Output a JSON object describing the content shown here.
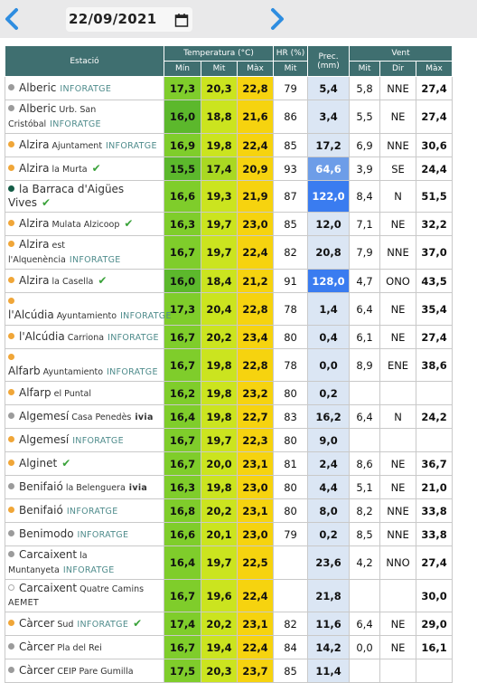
{
  "header": {
    "date": "22/09/2021"
  },
  "table": {
    "columns": {
      "station": "Estació",
      "temp": "Temperatura (°C)",
      "temp_min": "Mín",
      "temp_mit": "Mit",
      "temp_max": "Màx",
      "hr": "HR (%)",
      "hr_mit": "Mit",
      "prec": "Prec. (mm)",
      "wind": "Vent",
      "wind_mit": "Mit",
      "wind_dir": "Dir",
      "wind_max": "Màx"
    },
    "rows": [
      {
        "name": "Alberic",
        "place": null,
        "source": "INFORATGE",
        "dot": "gray",
        "check": false,
        "min": "17,3",
        "mit": "20,3",
        "max": "22,8",
        "hr": "79",
        "prec": "5,4",
        "wmit": "5,8",
        "wdir": "NNE",
        "wmax": "27,4"
      },
      {
        "name": "Alberic",
        "place": "Urb. San Cristóbal",
        "source": "INFORATGE",
        "dot": "gray",
        "check": false,
        "min": "16,0",
        "mit": "18,8",
        "max": "21,6",
        "hr": "86",
        "prec": "3,4",
        "wmit": "5,5",
        "wdir": "NE",
        "wmax": "27,4"
      },
      {
        "name": "Alzira",
        "place": "Ajuntament",
        "source": "INFORATGE",
        "dot": "orange",
        "check": false,
        "min": "16,9",
        "mit": "19,8",
        "max": "22,4",
        "hr": "85",
        "prec": "17,2",
        "wmit": "6,9",
        "wdir": "NNE",
        "wmax": "30,6"
      },
      {
        "name": "Alzira",
        "place": "la Murta",
        "source": null,
        "dot": "orange",
        "check": true,
        "min": "15,5",
        "mit": "17,4",
        "max": "20,9",
        "hr": "93",
        "prec": "64,6",
        "wmit": "3,9",
        "wdir": "SE",
        "wmax": "24,4"
      },
      {
        "name": "la Barraca d'Aigües Vives",
        "place": null,
        "source": null,
        "dot": "green",
        "check": true,
        "min": "16,6",
        "mit": "19,3",
        "max": "21,9",
        "hr": "87",
        "prec": "122,0",
        "wmit": "8,4",
        "wdir": "N",
        "wmax": "51,5"
      },
      {
        "name": "Alzira",
        "place": "Mulata Alzicoop",
        "source": null,
        "dot": "orange",
        "check": true,
        "min": "16,3",
        "mit": "19,7",
        "max": "23,0",
        "hr": "85",
        "prec": "12,0",
        "wmit": "7,1",
        "wdir": "NE",
        "wmax": "32,2"
      },
      {
        "name": "Alzira",
        "place": "est l'Alquenència",
        "source": "INFORATGE",
        "dot": "orange",
        "check": false,
        "min": "16,7",
        "mit": "19,7",
        "max": "22,4",
        "hr": "82",
        "prec": "20,8",
        "wmit": "7,9",
        "wdir": "NNE",
        "wmax": "37,0"
      },
      {
        "name": "Alzira",
        "place": "la Casella",
        "source": null,
        "dot": "orange",
        "check": true,
        "min": "16,0",
        "mit": "18,4",
        "max": "21,2",
        "hr": "91",
        "prec": "128,0",
        "wmit": "4,7",
        "wdir": "ONO",
        "wmax": "43,5"
      },
      {
        "name": "l'Alcúdia",
        "place": "Ayuntamiento",
        "source": "INFORATGE",
        "dot": "orange",
        "check": false,
        "min": "17,3",
        "mit": "20,4",
        "max": "22,8",
        "hr": "78",
        "prec": "1,4",
        "wmit": "6,4",
        "wdir": "NE",
        "wmax": "35,4"
      },
      {
        "name": "l'Alcúdia",
        "place": "Carriona",
        "source": "INFORATGE",
        "dot": "orange",
        "check": false,
        "min": "16,7",
        "mit": "20,2",
        "max": "23,4",
        "hr": "80",
        "prec": "0,4",
        "wmit": "6,1",
        "wdir": "NE",
        "wmax": "27,4"
      },
      {
        "name": "Alfarb",
        "place": "Ayuntamiento",
        "source": "INFORATGE",
        "dot": "orange",
        "check": false,
        "min": "16,7",
        "mit": "19,8",
        "max": "22,8",
        "hr": "78",
        "prec": "0,0",
        "wmit": "8,9",
        "wdir": "ENE",
        "wmax": "38,6"
      },
      {
        "name": "Alfarp",
        "place": "el Puntal",
        "source": null,
        "dot": "orange",
        "check": false,
        "min": "16,2",
        "mit": "19,8",
        "max": "23,2",
        "hr": "80",
        "prec": "0,2",
        "wmit": null,
        "wdir": null,
        "wmax": null
      },
      {
        "name": "Algemesí",
        "place": "Casa Penedès",
        "source": "ivia",
        "dot": "gray",
        "check": false,
        "min": "16,4",
        "mit": "19,8",
        "max": "22,7",
        "hr": "83",
        "prec": "16,2",
        "wmit": "6,4",
        "wdir": "N",
        "wmax": "24,2"
      },
      {
        "name": "Algemesí",
        "place": null,
        "source": "INFORATGE",
        "dot": "orange",
        "check": false,
        "min": "16,7",
        "mit": "19,7",
        "max": "22,3",
        "hr": "80",
        "prec": "9,0",
        "wmit": null,
        "wdir": null,
        "wmax": null
      },
      {
        "name": "Alginet",
        "place": null,
        "source": null,
        "dot": "orange",
        "check": true,
        "min": "16,7",
        "mit": "20,0",
        "max": "23,1",
        "hr": "81",
        "prec": "2,4",
        "wmit": "8,6",
        "wdir": "NE",
        "wmax": "36,7"
      },
      {
        "name": "Benifaió",
        "place": "la Belenguera",
        "source": "ivia",
        "dot": "gray",
        "check": false,
        "min": "16,3",
        "mit": "19,8",
        "max": "23,0",
        "hr": "80",
        "prec": "4,4",
        "wmit": "5,1",
        "wdir": "NE",
        "wmax": "21,0"
      },
      {
        "name": "Benifaió",
        "place": null,
        "source": "INFORATGE",
        "dot": "orange",
        "check": false,
        "min": "16,8",
        "mit": "20,2",
        "max": "23,1",
        "hr": "80",
        "prec": "8,0",
        "wmit": "8,2",
        "wdir": "NNE",
        "wmax": "33,8"
      },
      {
        "name": "Benimodo",
        "place": null,
        "source": "INFORATGE",
        "dot": "gray",
        "check": false,
        "min": "16,6",
        "mit": "20,1",
        "max": "23,0",
        "hr": "79",
        "prec": "0,2",
        "wmit": "8,5",
        "wdir": "NNE",
        "wmax": "33,8"
      },
      {
        "name": "Carcaixent",
        "place": "la Muntanyeta",
        "source": "INFORATGE",
        "dot": "gray",
        "check": false,
        "min": "16,4",
        "mit": "19,7",
        "max": "22,5",
        "hr": null,
        "prec": "23,6",
        "wmit": "4,2",
        "wdir": "NNO",
        "wmax": "27,4"
      },
      {
        "name": "Carcaixent",
        "place": "Quatre Camins",
        "source": "AEMET",
        "dot": "hollow",
        "check": false,
        "min": "16,7",
        "mit": "19,6",
        "max": "22,4",
        "hr": null,
        "prec": "21,8",
        "wmit": null,
        "wdir": null,
        "wmax": "30,0"
      },
      {
        "name": "Càrcer",
        "place": "Sud",
        "source": "INFORATGE",
        "dot": "orange",
        "check": true,
        "min": "17,4",
        "mit": "20,2",
        "max": "23,1",
        "hr": "82",
        "prec": "11,6",
        "wmit": "6,4",
        "wdir": "NE",
        "wmax": "29,0"
      },
      {
        "name": "Càrcer",
        "place": "Pla del Rei",
        "source": null,
        "dot": "gray",
        "check": false,
        "min": "16,7",
        "mit": "19,4",
        "max": "22,4",
        "hr": "84",
        "prec": "14,2",
        "wmit": "0,0",
        "wdir": "NE",
        "wmax": "16,1"
      },
      {
        "name": "Càrcer",
        "place": "CEIP Pare Gumilla",
        "source": null,
        "dot": "gray",
        "check": false,
        "min": "17,5",
        "mit": "20,3",
        "max": "23,7",
        "hr": "85",
        "prec": "11,4",
        "wmit": null,
        "wdir": null,
        "wmax": null
      }
    ]
  }
}
